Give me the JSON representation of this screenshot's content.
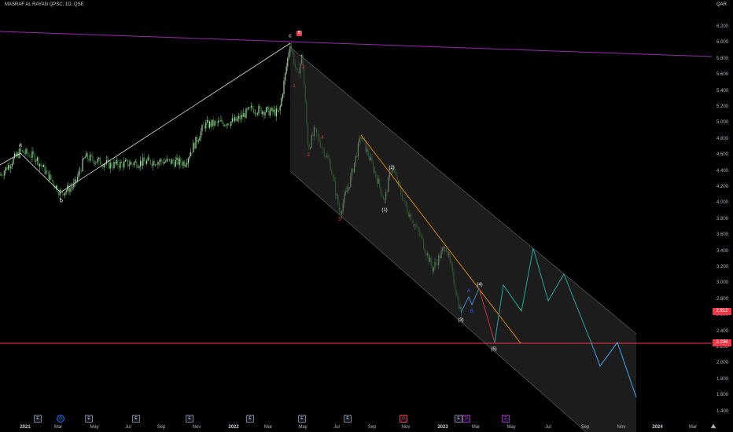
{
  "header": {
    "symbol_line": "MASRAF AL RAYAN QPSC, 1D, QSE",
    "currency": "QAR"
  },
  "y_axis": {
    "ticks": [
      "6.200",
      "6.000",
      "5.800",
      "5.600",
      "5.400",
      "5.200",
      "5.000",
      "4.800",
      "4.600",
      "4.400",
      "4.200",
      "4.000",
      "3.800",
      "3.600",
      "3.400",
      "3.200",
      "3.000",
      "2.800",
      "2.600",
      "2.400",
      "2.200",
      "2.000",
      "1.800",
      "1.600",
      "1.400"
    ]
  },
  "x_axis": {
    "ticks": [
      "2021",
      "Mar",
      "May",
      "Jul",
      "Sep",
      "Nov",
      "2022",
      "Mar",
      "May",
      "Jul",
      "Sep",
      "Nov",
      "2023",
      "Mar",
      "May",
      "Jul",
      "Sep",
      "Nov",
      "2024",
      "Mar"
    ]
  },
  "price_tags": {
    "last_price": "2.612",
    "support_line": "2.236"
  },
  "colors": {
    "bg": "#000000",
    "candle_up": "#a5d6a7",
    "candle_down": "#1b5e20",
    "resistance": "#9c27b0",
    "support": "#f23645",
    "channel": "#333333",
    "orange": "#ff9800",
    "teal": "#26a69a",
    "blue": "#42a5f5"
  },
  "events": [
    {
      "label": "E",
      "kind": "earn"
    },
    {
      "label": "D",
      "kind": "div"
    },
    {
      "label": "E",
      "kind": "earn"
    },
    {
      "label": "E",
      "kind": "earn"
    },
    {
      "label": "E",
      "kind": "earn"
    },
    {
      "label": "E",
      "kind": "earn"
    },
    {
      "label": "E",
      "kind": "earn"
    },
    {
      "label": "E",
      "kind": "earn"
    },
    {
      "label": "D",
      "kind": "red"
    },
    {
      "label": "E",
      "kind": "earn"
    },
    {
      "label": "D",
      "kind": "purple"
    },
    {
      "label": "E",
      "kind": "purple"
    }
  ],
  "wave_labels": {
    "a": "a",
    "b": "b",
    "c": "c",
    "badge": "B",
    "w1": "1",
    "w2": "2",
    "w3": "3",
    "w4": "4",
    "w5": "5",
    "p1": "(1)",
    "p2": "(2)",
    "p3": "(3)",
    "p4": "(4)",
    "p5": "(5)",
    "A": "A",
    "B": "B"
  },
  "chart_data": {
    "type": "candlestick",
    "instrument": "MASRAF AL RAYAN QPSC",
    "interval": "1D",
    "exchange": "QSE",
    "currency": "QAR",
    "ylim": [
      1.3,
      6.3
    ],
    "key_levels": {
      "last_price": 2.612,
      "support": 2.236
    },
    "swing_points": [
      {
        "label": "a",
        "date": "2021-01",
        "price": 4.62
      },
      {
        "label": "b",
        "date": "2021-02",
        "price": 4.1
      },
      {
        "label": "c",
        "date": "2022-04",
        "price": 5.98
      },
      {
        "label": "5",
        "date": "2022-07",
        "price": 3.82
      },
      {
        "label": "(1)",
        "date": "2022-10",
        "price": 4.0
      },
      {
        "label": "(2)",
        "date": "2022-10",
        "price": 4.45
      },
      {
        "label": "(3)",
        "date": "2023-02",
        "price": 2.58
      },
      {
        "label": "(4)",
        "date": "2023-02",
        "price": 2.9
      },
      {
        "label": "(5)",
        "date": "2023-04",
        "price": 2.24
      }
    ],
    "forecast_path": [
      {
        "date": "2023-04",
        "price": 2.24
      },
      {
        "date": "2023-04",
        "price": 2.93
      },
      {
        "date": "2023-05",
        "price": 2.6
      },
      {
        "date": "2023-06",
        "price": 3.4
      },
      {
        "date": "2023-07",
        "price": 2.75
      },
      {
        "date": "2023-08",
        "price": 3.08
      },
      {
        "date": "2023-09",
        "price": 2.25
      },
      {
        "date": "2023-10",
        "price": 1.93
      },
      {
        "date": "2023-11",
        "price": 2.2
      },
      {
        "date": "2023-12",
        "price": 1.52
      }
    ]
  }
}
